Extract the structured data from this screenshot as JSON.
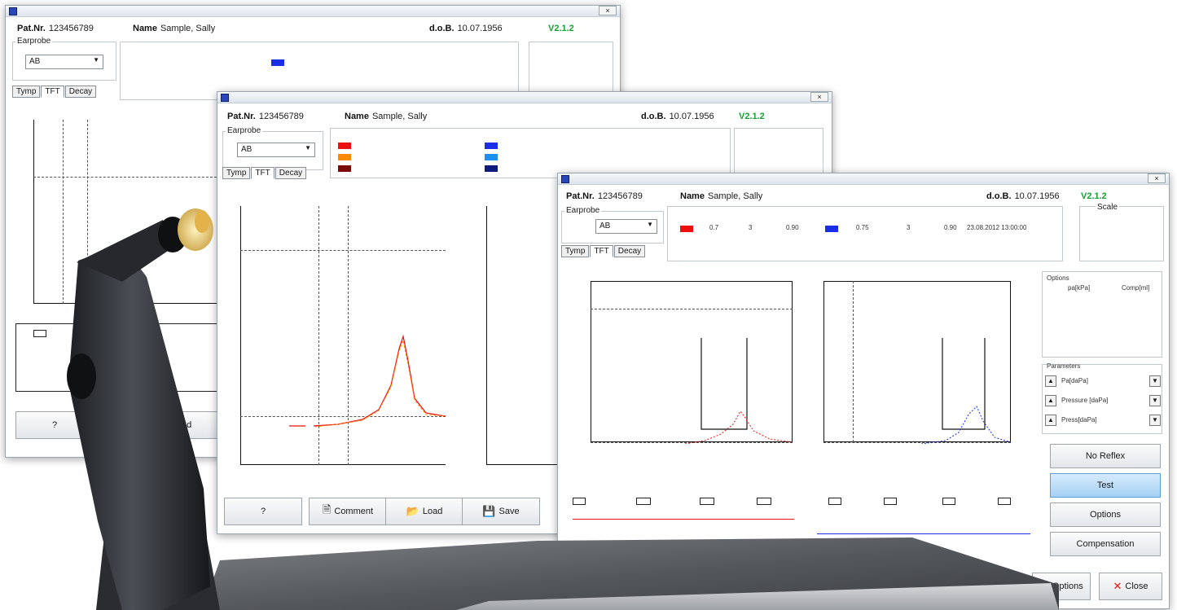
{
  "win1": {
    "pat_label": "Pat.Nr.",
    "pat_value": "123456789",
    "name_label": "Name",
    "name_value": "Sample, Sally",
    "dob_label": "d.o.B.",
    "dob_value": "10.07.1956",
    "version": "V2.1.2",
    "ear_label": "Earprobe",
    "ear_value": "AB",
    "tabs": [
      "Tymp",
      "TFT",
      "Decay"
    ],
    "btn_left": "?",
    "btn_right": "Load"
  },
  "win2": {
    "pat_label": "Pat.Nr.",
    "pat_value": "123456789",
    "name_label": "Name",
    "name_value": "Sample, Sally",
    "dob_label": "d.o.B.",
    "dob_value": "10.07.1956",
    "version": "V2.1.2",
    "ear_label": "Earprobe",
    "ear_value": "AB",
    "tabs": [
      "Tymp",
      "TFT",
      "Decay"
    ],
    "buttons": [
      "?",
      "Comment",
      "Load",
      "Save"
    ]
  },
  "win3": {
    "pat_label": "Pat.Nr.",
    "pat_value": "123456789",
    "name_label": "Name",
    "name_value": "Sample, Sally",
    "dob_label": "d.o.B.",
    "dob_value": "10.07.1956",
    "version": "V2.1.2",
    "ear_label": "Earprobe",
    "ear_value": "AB",
    "tabs": [
      "Tymp",
      "TFT",
      "Decay"
    ],
    "red_row": [
      "0.7",
      "3",
      "0.90"
    ],
    "blue_row": [
      "0.75",
      "3",
      "0.90",
      "23.08.2012 13:00:00"
    ],
    "scale_label": "Scale",
    "side_box_title": "Options",
    "side_cols": [
      "pa[kPa]",
      "Comp[ml]"
    ],
    "spin_title": "Parameters",
    "spin_rows": [
      "Pa[daPa]",
      "Pressure [daPa]",
      "Press[daPa]"
    ],
    "right_buttons": [
      "No Reflex",
      "Test",
      "Options",
      "Compensation"
    ],
    "bottom_buttons": [
      "Options",
      "Close"
    ]
  }
}
